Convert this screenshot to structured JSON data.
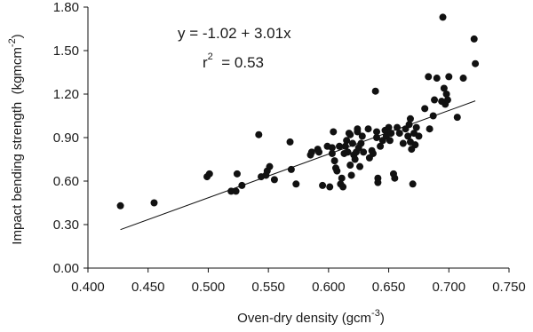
{
  "chart_data": {
    "type": "scatter",
    "xlim": [
      0.4,
      0.75
    ],
    "ylim": [
      0.0,
      1.8
    ],
    "x_ticks": [
      "0.400",
      "0.450",
      "0.500",
      "0.550",
      "0.600",
      "0.650",
      "0.700",
      "0.750"
    ],
    "y_ticks": [
      "0.00",
      "0.30",
      "0.60",
      "0.90",
      "1.20",
      "1.50",
      "1.80"
    ],
    "xlabel": {
      "main": "Oven-dry density (gcm",
      "sup": "-3",
      "end": ")"
    },
    "ylabel": {
      "main": "Impact bending strength  (kgmcm",
      "sup": "-2",
      "end": ")"
    },
    "equation": "y = -1.02 + 3.01x",
    "r2": {
      "prefix": "r",
      "sup": "2",
      "value": "  = 0.53"
    },
    "trendline": {
      "intercept": -1.02,
      "slope": 3.01,
      "x_range": [
        0.427,
        0.722
      ]
    },
    "grid": false,
    "marker_color": "#111111",
    "points": [
      [
        0.427,
        0.43
      ],
      [
        0.455,
        0.45
      ],
      [
        0.499,
        0.63
      ],
      [
        0.501,
        0.65
      ],
      [
        0.519,
        0.53
      ],
      [
        0.523,
        0.53
      ],
      [
        0.524,
        0.65
      ],
      [
        0.528,
        0.57
      ],
      [
        0.542,
        0.92
      ],
      [
        0.544,
        0.63
      ],
      [
        0.548,
        0.64
      ],
      [
        0.549,
        0.67
      ],
      [
        0.551,
        0.7
      ],
      [
        0.555,
        0.61
      ],
      [
        0.568,
        0.87
      ],
      [
        0.569,
        0.68
      ],
      [
        0.573,
        0.58
      ],
      [
        0.585,
        0.78
      ],
      [
        0.586,
        0.8
      ],
      [
        0.591,
        0.82
      ],
      [
        0.592,
        0.8
      ],
      [
        0.595,
        0.57
      ],
      [
        0.599,
        0.84
      ],
      [
        0.601,
        0.56
      ],
      [
        0.603,
        0.79
      ],
      [
        0.603,
        0.83
      ],
      [
        0.604,
        0.94
      ],
      [
        0.605,
        0.74
      ],
      [
        0.606,
        0.69
      ],
      [
        0.607,
        0.67
      ],
      [
        0.609,
        0.84
      ],
      [
        0.61,
        0.58
      ],
      [
        0.611,
        0.62
      ],
      [
        0.612,
        0.56
      ],
      [
        0.613,
        0.79
      ],
      [
        0.614,
        0.84
      ],
      [
        0.615,
        0.88
      ],
      [
        0.616,
        0.8
      ],
      [
        0.617,
        0.93
      ],
      [
        0.618,
        0.71
      ],
      [
        0.618,
        0.92
      ],
      [
        0.619,
        0.64
      ],
      [
        0.62,
        0.86
      ],
      [
        0.621,
        0.78
      ],
      [
        0.622,
        0.75
      ],
      [
        0.623,
        0.8
      ],
      [
        0.624,
        0.94
      ],
      [
        0.624,
        0.96
      ],
      [
        0.625,
        0.83
      ],
      [
        0.626,
        0.7
      ],
      [
        0.627,
        0.86
      ],
      [
        0.628,
        0.91
      ],
      [
        0.629,
        0.8
      ],
      [
        0.633,
        0.96
      ],
      [
        0.634,
        0.76
      ],
      [
        0.636,
        0.81
      ],
      [
        0.637,
        0.79
      ],
      [
        0.639,
        1.22
      ],
      [
        0.64,
        0.9
      ],
      [
        0.64,
        0.94
      ],
      [
        0.641,
        0.59
      ],
      [
        0.641,
        0.62
      ],
      [
        0.643,
        0.84
      ],
      [
        0.645,
        0.88
      ],
      [
        0.647,
        0.95
      ],
      [
        0.648,
        0.91
      ],
      [
        0.65,
        0.97
      ],
      [
        0.651,
        0.88
      ],
      [
        0.652,
        0.93
      ],
      [
        0.654,
        0.65
      ],
      [
        0.655,
        0.62
      ],
      [
        0.657,
        0.97
      ],
      [
        0.659,
        0.93
      ],
      [
        0.662,
        0.86
      ],
      [
        0.664,
        0.96
      ],
      [
        0.666,
        0.91
      ],
      [
        0.667,
        0.99
      ],
      [
        0.668,
        0.87
      ],
      [
        0.668,
        1.03
      ],
      [
        0.669,
        0.82
      ],
      [
        0.67,
        0.58
      ],
      [
        0.671,
        0.93
      ],
      [
        0.672,
        0.85
      ],
      [
        0.673,
        0.97
      ],
      [
        0.675,
        0.91
      ],
      [
        0.68,
        1.1
      ],
      [
        0.683,
        1.32
      ],
      [
        0.684,
        0.96
      ],
      [
        0.687,
        1.05
      ],
      [
        0.688,
        1.16
      ],
      [
        0.69,
        1.31
      ],
      [
        0.694,
        1.15
      ],
      [
        0.695,
        1.73
      ],
      [
        0.696,
        1.24
      ],
      [
        0.697,
        1.13
      ],
      [
        0.698,
        1.2
      ],
      [
        0.699,
        1.16
      ],
      [
        0.7,
        1.32
      ],
      [
        0.707,
        1.04
      ],
      [
        0.712,
        1.31
      ],
      [
        0.721,
        1.58
      ],
      [
        0.722,
        1.41
      ]
    ]
  }
}
